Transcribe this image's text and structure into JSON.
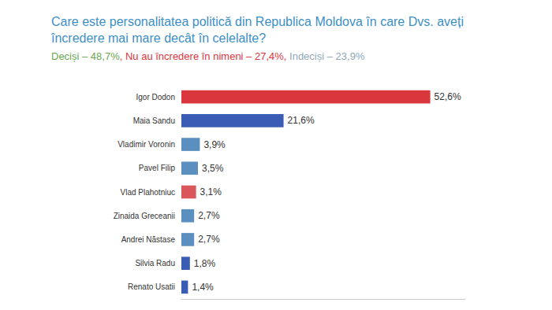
{
  "chart_data": {
    "type": "bar",
    "orientation": "horizontal",
    "title": "Care este personalitatea politică din Republica Moldova în care Dvs. aveți încredere mai mare decât în celelalte?",
    "subtitle": "Deciși – 48,7%, Nu au încredere în nimeni – 27,4%, Indeciși – 23,9%",
    "categories": [
      "Igor Dodon",
      "Maia Sandu",
      "Vladimir Voronin",
      "Pavel Filip",
      "Vlad Plahotniuc",
      "Zinaida Greceanii",
      "Andrei Năstase",
      "Silvia Radu",
      "Renato Usatii"
    ],
    "values": [
      52.6,
      21.6,
      3.9,
      3.5,
      3.1,
      2.7,
      2.7,
      1.8,
      1.4
    ],
    "value_labels": [
      "52,6%",
      "21,6%",
      "3,9%",
      "3,5%",
      "3,1%",
      "2,7%",
      "2,7%",
      "1,8%",
      "1,4%"
    ],
    "colors": [
      "#d9363e",
      "#3a5cb4",
      "#5b8fbf",
      "#5b8fbf",
      "#d9565c",
      "#5b8fbf",
      "#5b8fbf",
      "#3a5cb4",
      "#3a5cb4"
    ],
    "xlim": [
      0,
      60
    ],
    "data_labels": true,
    "tick_labels": "y",
    "grid": false
  }
}
